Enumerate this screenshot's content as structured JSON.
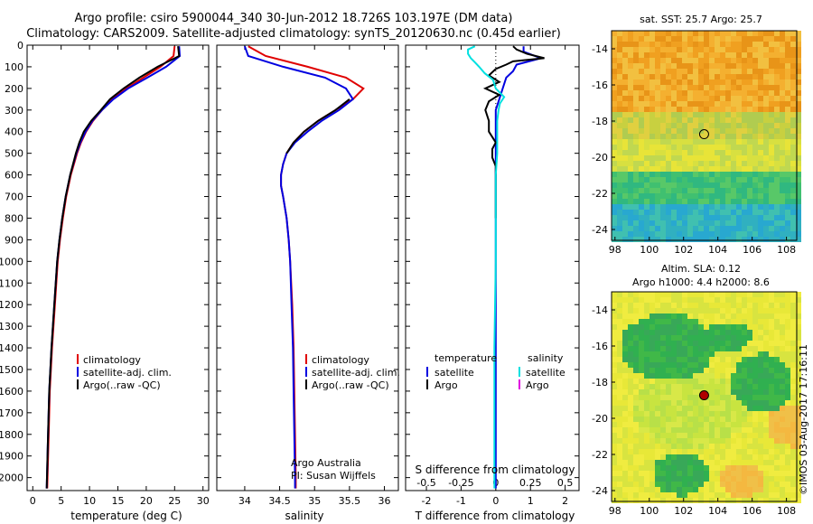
{
  "header": {
    "line1": "Argo profile: csiro 5900044_340 30-Jun-2012 18.726S 103.197E (DM data)",
    "line2": "Climatology: CARS2009. Satellite-adjusted climatology: synTS_20120630.nc (0.45d earlier)"
  },
  "colors": {
    "climatology": "#e00000",
    "satellite": "#0000e0",
    "argo": "#000000",
    "sat_salinity": "#00e0e0",
    "argo_salinity": "#e000e0"
  },
  "chart_data": [
    {
      "type": "line",
      "title": "",
      "xlabel": "temperature (deg C)",
      "ylabel": "",
      "xlim": [
        -1,
        31
      ],
      "ylim": [
        2060,
        0
      ],
      "xticks": [
        0,
        5,
        10,
        15,
        20,
        25,
        30
      ],
      "yticks": [
        0,
        100,
        200,
        300,
        400,
        500,
        600,
        700,
        800,
        900,
        1000,
        1100,
        1200,
        1300,
        1400,
        1500,
        1600,
        1700,
        1800,
        1900,
        2000
      ],
      "legend": [
        "climatology",
        "satellite-adj. clim.",
        "Argo(..raw -QC)"
      ],
      "series": [
        {
          "name": "climatology",
          "depth": [
            5,
            50,
            100,
            150,
            200,
            250,
            300,
            350,
            400,
            450,
            500,
            600,
            700,
            800,
            900,
            1000,
            1200,
            1400,
            1600,
            1800,
            2000,
            2050
          ],
          "values": [
            25.0,
            24.8,
            22.5,
            19.5,
            16.5,
            14.0,
            12.2,
            10.6,
            9.4,
            8.5,
            7.8,
            6.7,
            5.9,
            5.3,
            4.8,
            4.4,
            3.9,
            3.4,
            3.0,
            2.8,
            2.6,
            2.55
          ]
        },
        {
          "name": "satellite-adj. clim.",
          "depth": [
            5,
            50,
            100,
            150,
            200,
            250,
            300,
            350,
            400,
            450,
            500,
            600,
            700,
            800,
            900,
            1000,
            1200,
            1400,
            1600,
            1800,
            2000,
            2050
          ],
          "values": [
            25.8,
            25.9,
            23.5,
            20.2,
            16.8,
            14.2,
            12.2,
            10.5,
            9.3,
            8.4,
            7.7,
            6.6,
            5.8,
            5.2,
            4.7,
            4.3,
            3.8,
            3.3,
            2.9,
            2.7,
            2.5,
            2.45
          ]
        },
        {
          "name": "Argo(..raw -QC)",
          "depth": [
            5,
            50,
            100,
            150,
            200,
            250,
            300,
            350,
            400,
            450,
            500,
            600,
            700,
            800,
            900,
            1000,
            1200,
            1400,
            1600,
            1800,
            2000,
            2050
          ],
          "values": [
            25.6,
            25.8,
            22.0,
            18.8,
            16.0,
            13.6,
            12.0,
            10.3,
            9.0,
            8.2,
            7.6,
            6.6,
            5.8,
            5.2,
            4.7,
            4.3,
            3.8,
            3.3,
            2.9,
            2.7,
            2.5,
            2.45
          ]
        }
      ]
    },
    {
      "type": "line",
      "title": "",
      "xlabel": "salinity",
      "ylabel": "",
      "xlim": [
        33.6,
        36.2
      ],
      "ylim": [
        2060,
        0
      ],
      "xticks": [
        34,
        34.5,
        35,
        35.5,
        36
      ],
      "legend": [
        "climatology",
        "satellite-adj. clim.",
        "Argo(..raw -QC)"
      ],
      "credit_line1": "Argo Australia",
      "credit_line2": "PI: Susan Wijffels",
      "series": [
        {
          "name": "climatology",
          "depth": [
            5,
            50,
            100,
            150,
            200,
            250,
            300,
            350,
            400,
            450,
            500,
            550,
            600,
            650,
            700,
            800,
            900,
            1000,
            1200,
            1400,
            1600,
            1800,
            2000,
            2050
          ],
          "values": [
            34.05,
            34.3,
            34.9,
            35.45,
            35.7,
            35.55,
            35.3,
            35.05,
            34.85,
            34.7,
            34.6,
            34.55,
            34.52,
            34.52,
            34.55,
            34.6,
            34.63,
            34.65,
            34.68,
            34.7,
            34.71,
            34.72,
            34.73,
            34.73
          ]
        },
        {
          "name": "satellite-adj. clim.",
          "depth": [
            5,
            50,
            100,
            150,
            200,
            250,
            300,
            350,
            400,
            450,
            500,
            550,
            600,
            650,
            700,
            800,
            900,
            1000,
            1200,
            1400,
            1600,
            1800,
            2000,
            2050
          ],
          "values": [
            34.0,
            34.05,
            34.55,
            35.15,
            35.45,
            35.55,
            35.35,
            35.1,
            34.9,
            34.72,
            34.6,
            34.55,
            34.52,
            34.52,
            34.55,
            34.6,
            34.63,
            34.65,
            34.67,
            34.69,
            34.7,
            34.71,
            34.72,
            34.72
          ]
        },
        {
          "name": "Argo(..raw -QC)",
          "depth": [
            250,
            300,
            350,
            400,
            450,
            500
          ],
          "values": [
            35.5,
            35.3,
            35.05,
            34.85,
            34.7,
            34.6
          ]
        }
      ]
    },
    {
      "type": "line",
      "title": "",
      "xlabel": "T difference from climatology",
      "xlabel_top": "S difference from climatology",
      "ylabel": "",
      "xlim": [
        -2.6,
        2.4
      ],
      "ylim": [
        2060,
        0
      ],
      "xticks": [
        -2,
        -1,
        0,
        1,
        2
      ],
      "xticks_top": [
        -0.5,
        -0.25,
        0,
        0.25,
        0.5
      ],
      "xtick_labels_top": [
        "-0.5",
        "-0.25",
        "0",
        "0.25",
        "0.5"
      ],
      "legend_temperature_title": "temperature",
      "legend_salinity_title": "salinity",
      "legend_temperature": [
        "satellite",
        "Argo"
      ],
      "legend_salinity": [
        "satellite",
        "Argo"
      ],
      "series": [
        {
          "name": "temperature satellite",
          "depth": [
            5,
            30,
            60,
            90,
            120,
            150,
            200,
            250,
            300,
            350,
            400,
            450,
            500,
            600,
            700,
            800,
            1000,
            1400,
            2050
          ],
          "values": [
            0.8,
            0.8,
            1.3,
            0.6,
            0.5,
            0.3,
            0.2,
            0.1,
            0.0,
            0.0,
            0.0,
            0.0,
            0.0,
            0.0,
            0.0,
            0.0,
            0.0,
            0.0,
            0.0
          ]
        },
        {
          "name": "temperature Argo",
          "depth": [
            5,
            20,
            40,
            60,
            75,
            90,
            110,
            140,
            170,
            200,
            230,
            260,
            300,
            350,
            400,
            450,
            480,
            520,
            560,
            600,
            700,
            800
          ],
          "values": [
            0.5,
            0.6,
            0.9,
            1.4,
            0.5,
            0.3,
            0.0,
            -0.2,
            0.1,
            -0.3,
            0.1,
            -0.2,
            -0.3,
            -0.2,
            -0.2,
            0.0,
            -0.1,
            -0.1,
            0.0,
            0.0,
            0.0,
            0.0
          ]
        },
        {
          "name": "salinity satellite",
          "depth": [
            5,
            20,
            40,
            60,
            80,
            100,
            130,
            160,
            200,
            240,
            270,
            300,
            350,
            400,
            500,
            600,
            800,
            1000,
            1400,
            1600,
            2050
          ],
          "values": [
            -0.15,
            -0.2,
            -0.2,
            -0.18,
            -0.15,
            -0.12,
            -0.08,
            -0.02,
            0.0,
            0.06,
            0.03,
            0.02,
            0.01,
            0.01,
            0.01,
            0.0,
            0.0,
            0.0,
            -0.01,
            -0.01,
            -0.01
          ]
        },
        {
          "name": "salinity Argo",
          "depth": [],
          "values": []
        }
      ]
    },
    {
      "type": "heatmap",
      "title": "sat. SST: 25.7 Argo: 25.7",
      "xlim": [
        97.8,
        108.6
      ],
      "ylim": [
        -24.6,
        -13
      ],
      "xticks": [
        98,
        100,
        102,
        104,
        106,
        108
      ],
      "yticks": [
        -14,
        -16,
        -18,
        -20,
        -22,
        -24
      ],
      "marker": {
        "lon": 103.197,
        "lat": -18.726
      }
    },
    {
      "type": "heatmap",
      "title": "Altim. SLA: 0.12",
      "subtitle": "Argo h1000: 4.4 h2000: 8.6",
      "xlim": [
        97.8,
        108.6
      ],
      "ylim": [
        -24.6,
        -13
      ],
      "xticks": [
        98,
        100,
        102,
        104,
        106,
        108
      ],
      "yticks": [
        -14,
        -16,
        -18,
        -20,
        -22,
        -24
      ],
      "marker": {
        "lon": 103.197,
        "lat": -18.726
      }
    }
  ],
  "credit": "©IMOS 03-Aug-2017 17:16:11"
}
